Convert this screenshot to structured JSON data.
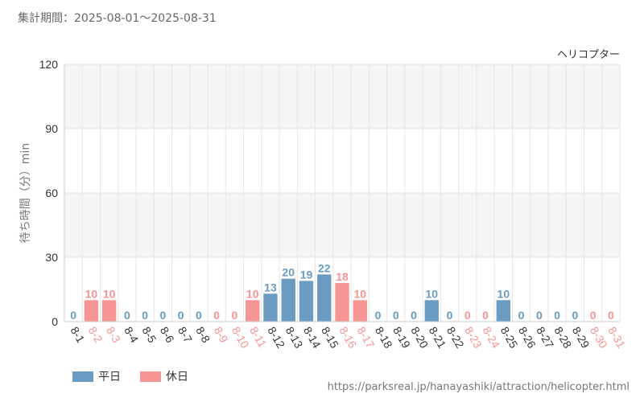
{
  "period_text": "集計期間：2025-08-01〜2025-08-31",
  "source_url": "https://parksreal.jp/hanayashiki/attraction/helicopter.html",
  "colors": {
    "weekday": "#6a9bc3",
    "holiday": "#f79494",
    "grid": "#e6e6e6",
    "band": "#f5f5f5"
  },
  "legend": {
    "weekday": "平日",
    "holiday": "休日"
  },
  "chart_data": {
    "type": "bar",
    "title": "ヘリコプター",
    "ylabel": "待ち時間（分）min",
    "xlabel": "",
    "ylim": [
      0,
      120
    ],
    "yticks": [
      0,
      30,
      60,
      90,
      120
    ],
    "categories": [
      "8-1",
      "8-2",
      "8-3",
      "8-4",
      "8-5",
      "8-6",
      "8-7",
      "8-8",
      "8-9",
      "8-10",
      "8-11",
      "8-12",
      "8-13",
      "8-14",
      "8-15",
      "8-16",
      "8-17",
      "8-18",
      "8-19",
      "8-20",
      "8-21",
      "8-22",
      "8-23",
      "8-24",
      "8-25",
      "8-26",
      "8-27",
      "8-28",
      "8-29",
      "8-30",
      "8-31"
    ],
    "values": [
      0,
      10,
      10,
      0,
      0,
      0,
      0,
      0,
      0,
      0,
      10,
      13,
      20,
      19,
      22,
      18,
      10,
      0,
      0,
      0,
      10,
      0,
      0,
      0,
      10,
      0,
      0,
      0,
      0,
      0,
      0
    ],
    "day_types": [
      "weekday",
      "holiday",
      "holiday",
      "weekday",
      "weekday",
      "weekday",
      "weekday",
      "weekday",
      "holiday",
      "holiday",
      "holiday",
      "weekday",
      "weekday",
      "weekday",
      "weekday",
      "holiday",
      "holiday",
      "weekday",
      "weekday",
      "weekday",
      "weekday",
      "weekday",
      "holiday",
      "holiday",
      "weekday",
      "weekday",
      "weekday",
      "weekday",
      "weekday",
      "holiday",
      "holiday"
    ]
  }
}
